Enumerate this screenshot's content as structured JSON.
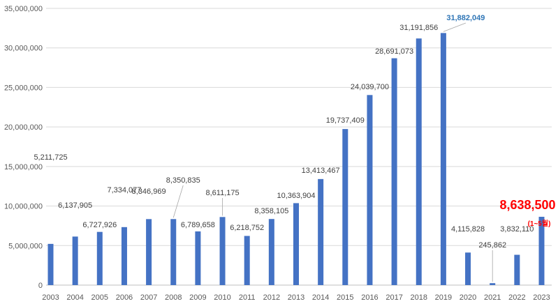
{
  "chart_data": {
    "type": "bar",
    "categories": [
      "2003",
      "2004",
      "2005",
      "2006",
      "2007",
      "2008",
      "2009",
      "2010",
      "2011",
      "2012",
      "2013",
      "2014",
      "2015",
      "2016",
      "2017",
      "2018",
      "2019",
      "2020",
      "2021",
      "2022",
      "2023"
    ],
    "values": [
      5211725,
      6137905,
      6727926,
      7334077,
      8346969,
      8350835,
      6789658,
      8611175,
      6218752,
      8358105,
      10363904,
      13413467,
      19737409,
      24039700,
      28691073,
      31191856,
      31882049,
      4115828,
      245862,
      3832110,
      8638500
    ],
    "data_labels": [
      "5,211,725",
      "6,137,905",
      "6,727,926",
      "7,334,077",
      "8,346,969",
      "8,350,835",
      "6,789,658",
      "8,611,175",
      "6,218,752",
      "8,358,105",
      "10,363,904",
      "13,413,467",
      "19,737,409",
      "24,039,700",
      "28,691,073",
      "31,191,856",
      "31,882,049",
      "4,115,828",
      "245,862",
      "3,832,110",
      "8,638,500"
    ],
    "y_ticks": [
      "0",
      "5,000,000",
      "10,000,000",
      "15,000,000",
      "20,000,000",
      "25,000,000",
      "30,000,000",
      "35,000,000"
    ],
    "ylim": [
      0,
      35000000
    ],
    "grid": true,
    "legend": "none",
    "annotation": "(1~5월)",
    "colors": {
      "bar": "#4472C4",
      "grid": "#D9D9D9",
      "highlight_blue": "#2E75B6",
      "highlight_red": "#FF0000",
      "leader": "#A6A6A6"
    }
  }
}
